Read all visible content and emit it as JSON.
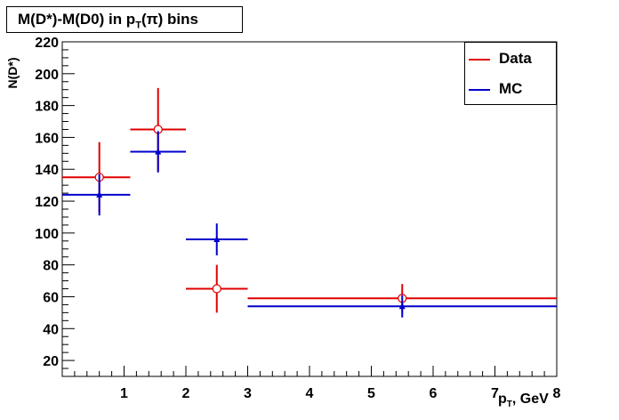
{
  "title": {
    "prefix": "M(D*)-M(D0) in p",
    "sub": "T",
    "suffix": "(π) bins"
  },
  "legend": [
    {
      "label": "Data",
      "color": "#e00000"
    },
    {
      "label": "MC",
      "color": "#0000cc"
    }
  ],
  "xlabel": {
    "main": "p",
    "sub": "T",
    "rest": ", GeV"
  },
  "ylabel": "N(D*)",
  "chart_data": {
    "type": "scatter",
    "xlim": [
      0,
      8
    ],
    "ylim": [
      10,
      220
    ],
    "xticks": [
      1,
      2,
      3,
      4,
      5,
      6,
      7,
      8
    ],
    "yticks": [
      20,
      40,
      60,
      80,
      100,
      120,
      140,
      160,
      180,
      200,
      220
    ],
    "grid": false,
    "legend_position": "top-right",
    "series": [
      {
        "name": "Data",
        "color": "#e00000",
        "marker": "open-circle",
        "points": [
          {
            "x": 0.6,
            "y": 135,
            "xlo": 0.0,
            "xhi": 1.1,
            "yerr": 22
          },
          {
            "x": 1.55,
            "y": 165,
            "xlo": 1.1,
            "xhi": 2.0,
            "yerr": 26
          },
          {
            "x": 2.5,
            "y": 65,
            "xlo": 2.0,
            "xhi": 3.0,
            "yerr": 15
          },
          {
            "x": 5.5,
            "y": 59,
            "xlo": 3.0,
            "xhi": 8.0,
            "yerr": 9
          }
        ]
      },
      {
        "name": "MC",
        "color": "#0000cc",
        "marker": "filled-triangle",
        "points": [
          {
            "x": 0.6,
            "y": 124,
            "xlo": 0.0,
            "xhi": 1.1,
            "yerr": 13
          },
          {
            "x": 1.55,
            "y": 151,
            "xlo": 1.1,
            "xhi": 2.0,
            "yerr": 13
          },
          {
            "x": 2.5,
            "y": 96,
            "xlo": 2.0,
            "xhi": 3.0,
            "yerr": 10
          },
          {
            "x": 5.5,
            "y": 54,
            "xlo": 3.0,
            "xhi": 8.0,
            "yerr": 7
          }
        ]
      }
    ]
  }
}
